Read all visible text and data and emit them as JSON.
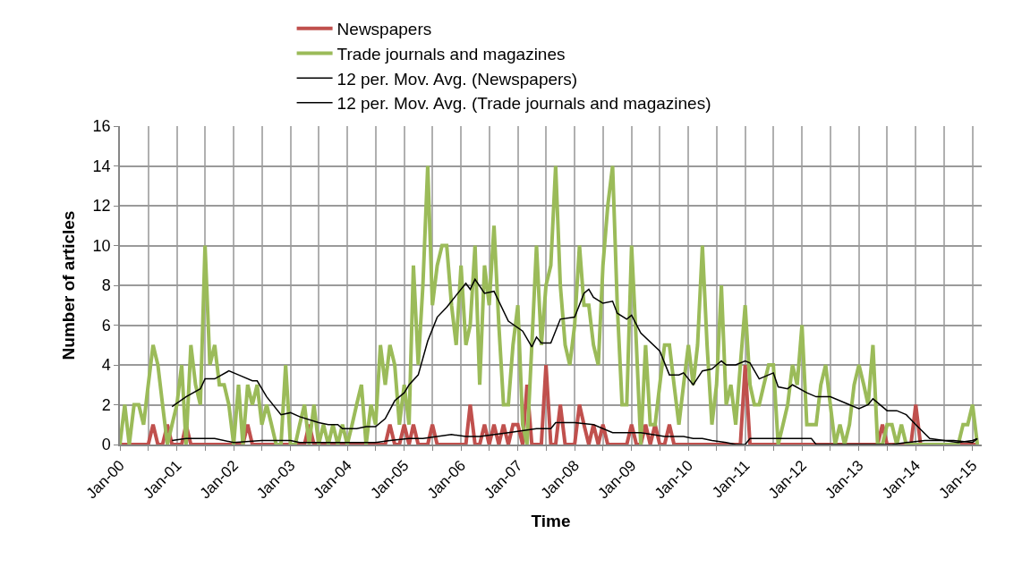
{
  "chart_data": {
    "type": "line",
    "xlabel": "Time",
    "ylabel": "Number of articles",
    "ylim": [
      0,
      16
    ],
    "yticks": [
      0,
      2,
      4,
      6,
      8,
      10,
      12,
      14,
      16
    ],
    "xlim": [
      "2000-01",
      "2015-03"
    ],
    "xticks": [
      {
        "value": "2000-01",
        "label": "Jan-00"
      },
      {
        "value": "2000-07",
        "label": null
      },
      {
        "value": "2001-01",
        "label": "Jan-01"
      },
      {
        "value": "2001-07",
        "label": null
      },
      {
        "value": "2002-01",
        "label": "Jan-02"
      },
      {
        "value": "2002-07",
        "label": null
      },
      {
        "value": "2003-01",
        "label": "Jan-03"
      },
      {
        "value": "2003-07",
        "label": null
      },
      {
        "value": "2004-01",
        "label": "Jan-04"
      },
      {
        "value": "2004-07",
        "label": null
      },
      {
        "value": "2005-01",
        "label": "Jan-05"
      },
      {
        "value": "2005-07",
        "label": null
      },
      {
        "value": "2006-01",
        "label": "Jan-06"
      },
      {
        "value": "2006-07",
        "label": null
      },
      {
        "value": "2007-01",
        "label": "Jan-07"
      },
      {
        "value": "2007-07",
        "label": null
      },
      {
        "value": "2008-01",
        "label": "Jan-08"
      },
      {
        "value": "2008-07",
        "label": null
      },
      {
        "value": "2009-01",
        "label": "Jan-09"
      },
      {
        "value": "2009-07",
        "label": null
      },
      {
        "value": "2010-01",
        "label": "Jan-10"
      },
      {
        "value": "2010-07",
        "label": null
      },
      {
        "value": "2011-01",
        "label": "Jan-11"
      },
      {
        "value": "2011-07",
        "label": null
      },
      {
        "value": "2012-01",
        "label": "Jan-12"
      },
      {
        "value": "2012-07",
        "label": null
      },
      {
        "value": "2013-01",
        "label": "Jan-13"
      },
      {
        "value": "2013-07",
        "label": null
      },
      {
        "value": "2014-01",
        "label": "Jan-14"
      },
      {
        "value": "2014-07",
        "label": null
      },
      {
        "value": "2015-01",
        "label": "Jan-15"
      }
    ],
    "grid": true,
    "legend": "top",
    "marker": "none",
    "line_style": "solid",
    "x": [
      "2000-01",
      "2000-02",
      "2000-03",
      "2000-04",
      "2000-05",
      "2000-06",
      "2000-07",
      "2000-08",
      "2000-09",
      "2000-10",
      "2000-11",
      "2000-12",
      "2001-01",
      "2001-02",
      "2001-03",
      "2001-04",
      "2001-05",
      "2001-06",
      "2001-07",
      "2001-08",
      "2001-09",
      "2001-10",
      "2001-11",
      "2001-12",
      "2002-01",
      "2002-02",
      "2002-03",
      "2002-04",
      "2002-05",
      "2002-06",
      "2002-07",
      "2002-08",
      "2002-09",
      "2002-10",
      "2002-11",
      "2002-12",
      "2003-01",
      "2003-02",
      "2003-03",
      "2003-04",
      "2003-05",
      "2003-06",
      "2003-07",
      "2003-08",
      "2003-09",
      "2003-10",
      "2003-11",
      "2003-12",
      "2004-01",
      "2004-02",
      "2004-03",
      "2004-04",
      "2004-05",
      "2004-06",
      "2004-07",
      "2004-08",
      "2004-09",
      "2004-10",
      "2004-11",
      "2004-12",
      "2005-01",
      "2005-02",
      "2005-03",
      "2005-04",
      "2005-05",
      "2005-06",
      "2005-07",
      "2005-08",
      "2005-09",
      "2005-10",
      "2005-11",
      "2005-12",
      "2006-01",
      "2006-02",
      "2006-03",
      "2006-04",
      "2006-05",
      "2006-06",
      "2006-07",
      "2006-08",
      "2006-09",
      "2006-10",
      "2006-11",
      "2006-12",
      "2007-01",
      "2007-02",
      "2007-03",
      "2007-04",
      "2007-05",
      "2007-06",
      "2007-07",
      "2007-08",
      "2007-09",
      "2007-10",
      "2007-11",
      "2007-12",
      "2008-01",
      "2008-02",
      "2008-03",
      "2008-04",
      "2008-05",
      "2008-06",
      "2008-07",
      "2008-08",
      "2008-09",
      "2008-10",
      "2008-11",
      "2008-12",
      "2009-01",
      "2009-02",
      "2009-03",
      "2009-04",
      "2009-05",
      "2009-06",
      "2009-07",
      "2009-08",
      "2009-09",
      "2009-10",
      "2009-11",
      "2009-12",
      "2010-01",
      "2010-02",
      "2010-03",
      "2010-04",
      "2010-05",
      "2010-06",
      "2010-07",
      "2010-08",
      "2010-09",
      "2010-10",
      "2010-11",
      "2010-12",
      "2011-01",
      "2011-02",
      "2011-03",
      "2011-04",
      "2011-05",
      "2011-06",
      "2011-07",
      "2011-08",
      "2011-09",
      "2011-10",
      "2011-11",
      "2011-12",
      "2012-01",
      "2012-02",
      "2012-03",
      "2012-04",
      "2012-05",
      "2012-06",
      "2012-07",
      "2012-08",
      "2012-09",
      "2012-10",
      "2012-11",
      "2012-12",
      "2013-01",
      "2013-02",
      "2013-03",
      "2013-04",
      "2013-05",
      "2013-06",
      "2013-07",
      "2013-08",
      "2013-09",
      "2013-10",
      "2013-11",
      "2013-12",
      "2014-01",
      "2014-02",
      "2014-03",
      "2014-04",
      "2014-05",
      "2014-06",
      "2014-07",
      "2014-08",
      "2014-09",
      "2014-10",
      "2014-11",
      "2014-12",
      "2015-01",
      "2015-02"
    ],
    "series": [
      {
        "name": "Newspapers",
        "color": "#c0504d",
        "values": [
          0,
          0,
          0,
          0,
          0,
          0,
          0,
          1,
          0,
          0,
          1,
          0,
          0,
          0,
          1,
          0,
          0,
          0,
          0,
          0,
          0,
          0,
          0,
          0,
          0,
          0,
          0,
          1,
          0,
          0,
          0,
          0,
          0,
          0,
          0,
          0,
          0,
          0,
          0,
          0,
          1,
          0,
          0,
          0,
          0,
          0,
          0,
          0,
          0,
          0,
          0,
          0,
          0,
          0,
          0,
          0,
          0,
          1,
          0,
          0,
          1,
          0,
          1,
          0,
          0,
          0,
          1,
          0,
          0,
          0,
          0,
          0,
          0,
          0,
          2,
          0,
          0,
          1,
          0,
          1,
          0,
          1,
          0,
          1,
          1,
          0,
          3,
          0,
          0,
          0,
          4,
          0,
          0,
          2,
          0,
          0,
          0,
          2,
          1,
          0,
          1,
          0,
          1,
          0,
          0,
          0,
          0,
          0,
          1,
          0,
          0,
          1,
          0,
          1,
          0,
          0,
          1,
          0,
          0,
          0,
          0,
          0,
          0,
          0,
          0,
          0,
          0,
          0,
          0,
          0,
          0,
          0,
          4,
          0,
          0,
          0,
          0,
          0,
          0,
          0,
          0,
          0,
          0,
          0,
          0,
          0,
          0,
          0,
          0,
          0,
          0,
          0,
          0,
          0,
          0,
          0,
          0,
          0,
          0,
          0,
          0,
          1,
          0,
          0,
          0,
          0,
          0,
          0,
          2,
          0,
          0,
          0,
          0,
          0,
          0,
          0,
          0,
          0,
          0,
          0,
          0,
          0
        ]
      },
      {
        "name": "Trade journals and magazines",
        "color": "#9bbb59",
        "values": [
          0,
          2,
          0,
          2,
          2,
          1,
          3,
          5,
          4,
          2,
          0,
          1,
          2,
          4,
          0,
          5,
          3,
          2,
          10,
          4,
          5,
          3,
          3,
          2,
          0,
          3,
          0,
          3,
          2,
          3,
          1,
          2,
          1,
          0,
          0,
          4,
          0,
          0,
          1,
          2,
          0,
          2,
          0,
          1,
          0,
          1,
          0,
          1,
          0,
          1,
          2,
          3,
          0,
          2,
          1,
          5,
          3,
          5,
          4,
          1,
          3,
          1,
          9,
          4,
          8,
          14,
          7,
          9,
          10,
          10,
          7,
          5,
          9,
          5,
          6,
          10,
          3,
          9,
          7,
          11,
          6,
          2,
          2,
          5,
          7,
          1,
          0,
          5,
          10,
          5,
          8,
          9,
          14,
          8,
          5,
          4,
          6,
          10,
          7,
          7,
          5,
          4,
          9,
          12,
          14,
          7,
          2,
          2,
          10,
          5,
          0,
          5,
          1,
          1,
          3,
          5,
          5,
          3,
          1,
          3,
          5,
          3,
          5,
          10,
          5,
          1,
          3,
          8,
          2,
          3,
          1,
          4,
          7,
          3,
          2,
          2,
          3,
          4,
          4,
          0,
          1,
          2,
          4,
          3,
          6,
          1,
          1,
          1,
          3,
          4,
          2,
          0,
          1,
          0,
          1,
          3,
          4,
          3,
          2,
          5,
          0,
          0,
          1,
          1,
          0,
          1,
          0,
          0,
          0,
          0,
          0,
          0,
          0,
          0,
          0,
          0,
          0,
          0,
          1,
          1,
          2,
          0
        ]
      },
      {
        "name": "12 per. Mov. Avg. (Newspapers)",
        "color": "#000000",
        "x": [
          "2000-12",
          "2001-03",
          "2001-09",
          "2002-01",
          "2002-07",
          "2003-01",
          "2003-03",
          "2004-01",
          "2004-07",
          "2004-10",
          "2005-02",
          "2005-05",
          "2005-11",
          "2006-02",
          "2006-05",
          "2006-11",
          "2007-05",
          "2007-08",
          "2007-09",
          "2008-01",
          "2008-05",
          "2008-09",
          "2008-12",
          "2009-03",
          "2009-08",
          "2009-12",
          "2010-02",
          "2010-04",
          "2010-06",
          "2010-09",
          "2010-11",
          "2011-01",
          "2011-02",
          "2012-03",
          "2012-04",
          "2012-12",
          "2013-08",
          "2013-11",
          "2014-03",
          "2014-09",
          "2015-01",
          "2015-02"
        ],
        "values": [
          0.2,
          0.3,
          0.3,
          0.1,
          0.2,
          0.2,
          0.1,
          0.1,
          0.1,
          0.2,
          0.3,
          0.3,
          0.5,
          0.4,
          0.4,
          0.6,
          0.8,
          0.8,
          1.1,
          1.1,
          1.0,
          0.6,
          0.6,
          0.6,
          0.4,
          0.4,
          0.3,
          0.3,
          0.2,
          0.1,
          0.0,
          0.0,
          0.3,
          0.3,
          0.0,
          0.0,
          0.0,
          0.1,
          0.2,
          0.2,
          0.1,
          0.3
        ]
      },
      {
        "name": "12 per. Mov. Avg. (Trade journals and magazines)",
        "color": "#000000",
        "x": [
          "2000-12",
          "2001-03",
          "2001-06",
          "2001-07",
          "2001-09",
          "2001-12",
          "2002-02",
          "2002-05",
          "2002-06",
          "2002-08",
          "2002-11",
          "2003-01",
          "2003-03",
          "2003-07",
          "2003-09",
          "2003-11",
          "2003-12",
          "2004-03",
          "2004-05",
          "2004-07",
          "2004-09",
          "2004-11",
          "2005-01",
          "2005-02",
          "2005-04",
          "2005-06",
          "2005-08",
          "2005-10",
          "2005-12",
          "2006-02",
          "2006-03",
          "2006-04",
          "2006-06",
          "2006-08",
          "2006-11",
          "2007-02",
          "2007-04",
          "2007-05",
          "2007-06",
          "2007-08",
          "2007-10",
          "2008-01",
          "2008-03",
          "2008-04",
          "2008-05",
          "2008-07",
          "2008-09",
          "2008-10",
          "2008-12",
          "2009-01",
          "2009-03",
          "2009-07",
          "2009-09",
          "2009-11",
          "2009-12",
          "2010-02",
          "2010-04",
          "2010-06",
          "2010-08",
          "2010-09",
          "2010-11",
          "2011-01",
          "2011-02",
          "2011-04",
          "2011-07",
          "2011-08",
          "2011-10",
          "2011-11",
          "2012-02",
          "2012-04",
          "2012-07",
          "2012-11",
          "2013-01",
          "2013-03",
          "2013-04",
          "2013-07",
          "2013-09",
          "2013-11",
          "2014-01",
          "2014-04",
          "2014-07",
          "2014-10",
          "2015-01",
          "2015-02"
        ],
        "values": [
          1.9,
          2.4,
          2.8,
          3.3,
          3.3,
          3.7,
          3.5,
          3.2,
          3.2,
          2.4,
          1.5,
          1.6,
          1.4,
          1.1,
          1.0,
          1.0,
          0.8,
          0.8,
          0.9,
          0.9,
          1.3,
          2.2,
          2.6,
          3.0,
          3.5,
          5.2,
          6.4,
          6.9,
          7.5,
          8.1,
          7.8,
          8.3,
          7.6,
          7.7,
          6.2,
          5.7,
          4.9,
          5.4,
          5.1,
          5.1,
          6.3,
          6.4,
          7.6,
          7.8,
          7.4,
          7.1,
          7.2,
          6.6,
          6.3,
          6.5,
          5.6,
          4.7,
          3.5,
          3.5,
          3.6,
          3.0,
          3.7,
          3.8,
          4.2,
          4.0,
          4.0,
          4.2,
          4.1,
          3.3,
          3.6,
          2.9,
          2.8,
          3.0,
          2.6,
          2.4,
          2.4,
          2.0,
          1.8,
          2.0,
          2.3,
          1.7,
          1.7,
          1.5,
          1.0,
          0.3,
          0.2,
          0.1,
          0.2,
          0.3
        ]
      }
    ]
  }
}
